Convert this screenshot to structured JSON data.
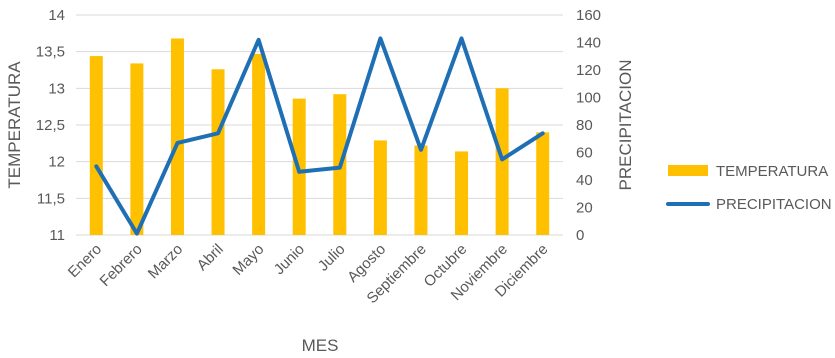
{
  "chart_data": {
    "type": "bar+line",
    "categories": [
      "Enero",
      "Febrero",
      "Marzo",
      "Abril",
      "Mayo",
      "Junio",
      "Julio",
      "Agosto",
      "Septiembre",
      "Octubre",
      "Noviembre",
      "Diciembre"
    ],
    "series": [
      {
        "name": "TEMPERATURA",
        "type": "bar",
        "axis": "left",
        "color": "#FFC000",
        "values": [
          13.44,
          13.34,
          13.68,
          13.26,
          13.47,
          12.86,
          12.92,
          12.29,
          12.22,
          12.14,
          13.0,
          12.4
        ]
      },
      {
        "name": "PRECIPITACION",
        "type": "line",
        "axis": "right",
        "color": "#1F6FB5",
        "values": [
          50,
          1,
          67,
          74,
          142,
          46,
          49,
          143,
          62,
          143,
          55,
          74
        ]
      }
    ],
    "xlabel": "MES",
    "ylabel_left": "TEMPERATURA",
    "ylabel_right": "PRECIPITACION",
    "ylim_left": [
      11,
      14
    ],
    "ylim_right": [
      0,
      160
    ],
    "yticks_left": [
      "11",
      "11,5",
      "12",
      "12,5",
      "13",
      "13,5",
      "14"
    ],
    "yticks_right": [
      "0",
      "20",
      "40",
      "60",
      "80",
      "100",
      "120",
      "140",
      "160"
    ],
    "grid": true,
    "legend_position": "right"
  }
}
